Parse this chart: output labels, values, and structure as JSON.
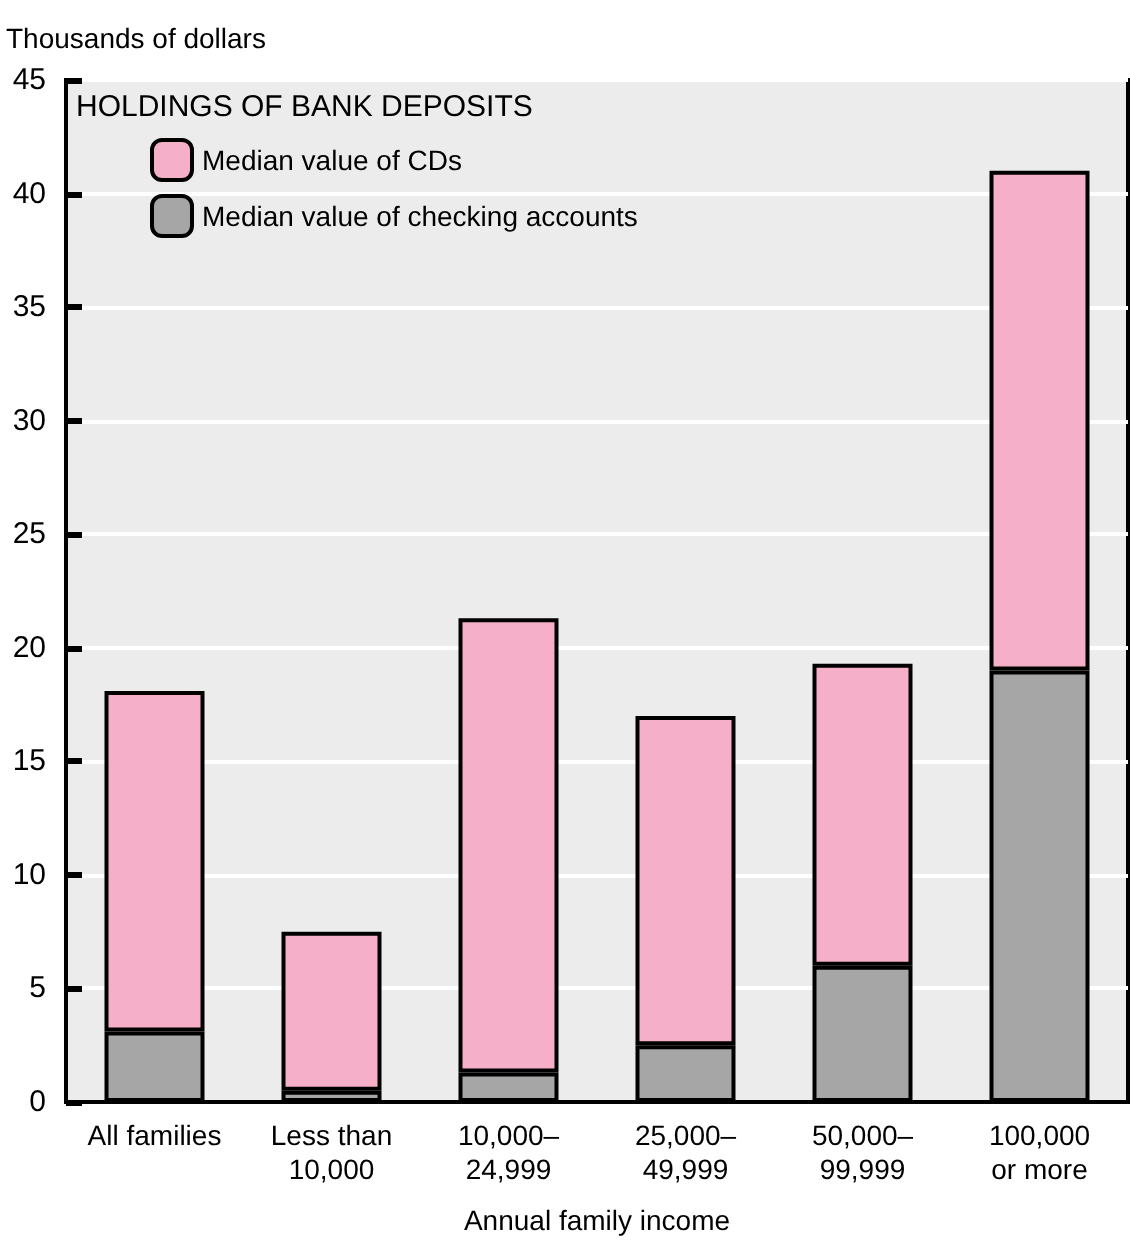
{
  "chart_data": {
    "type": "bar",
    "stacked": true,
    "ylabel": "Thousands of dollars",
    "xlabel": "Annual family income",
    "legend_title": "HOLDINGS OF BANK DEPOSITS",
    "categories": [
      "All families",
      "Less than\n10,000",
      "10,000–\n24,999",
      "25,000–\n49,999",
      "50,000–\n99,999",
      "100,000\nor more"
    ],
    "series": [
      {
        "name": "Median value of checking accounts",
        "color": "#a6a6a6",
        "values": [
          3.1,
          0.5,
          1.3,
          2.5,
          6.0,
          19.0
        ]
      },
      {
        "name": "Median value of CDs",
        "color": "#f6afc8",
        "values": [
          15.0,
          7.0,
          20.0,
          14.5,
          13.3,
          22.0
        ]
      }
    ],
    "ylim": [
      0,
      45
    ],
    "yticks": [
      0,
      5,
      10,
      15,
      20,
      25,
      30,
      35,
      40,
      45
    ],
    "grid": "y",
    "legend": "top left"
  }
}
